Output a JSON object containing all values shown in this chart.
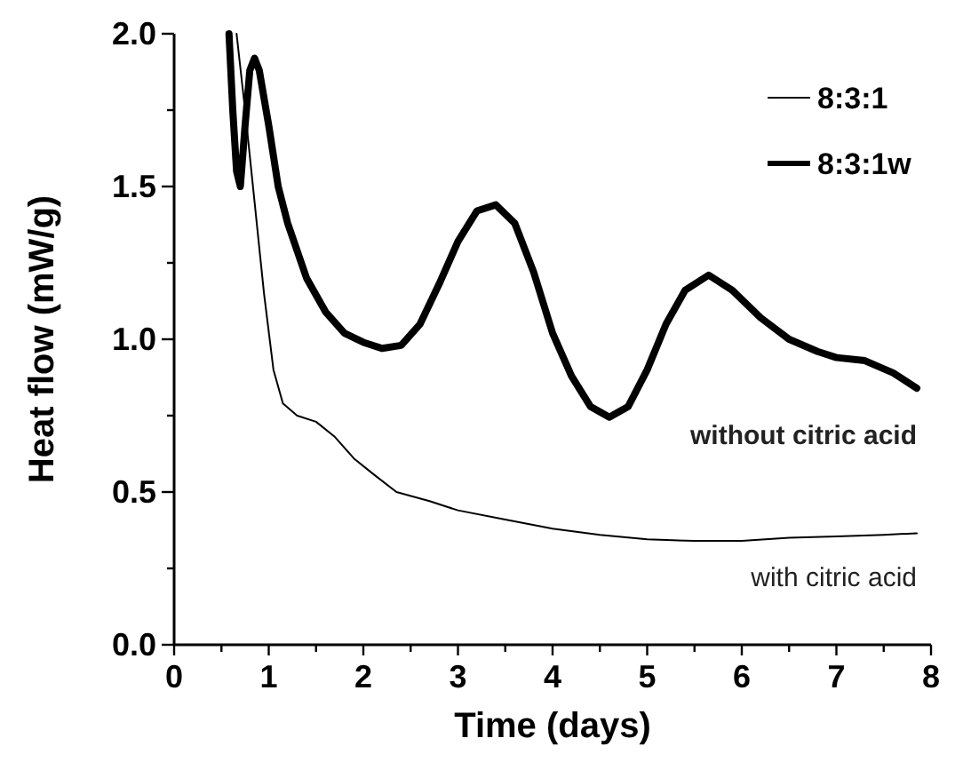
{
  "chart_data": {
    "type": "line",
    "xlabel": "Time (days)",
    "ylabel": "Heat flow (mW/g)",
    "xlim": [
      0,
      8
    ],
    "ylim": [
      0,
      2
    ],
    "xticks": [
      0,
      {
        "value": 0.5,
        "label": null
      },
      1,
      {
        "value": 1.5,
        "label": null
      },
      2,
      {
        "value": 2.5,
        "label": null
      },
      3,
      {
        "value": 3.5,
        "label": null
      },
      4,
      {
        "value": 4.5,
        "label": null
      },
      5,
      {
        "value": 5.5,
        "label": null
      },
      6,
      {
        "value": 6.5,
        "label": null
      },
      7,
      {
        "value": 7.5,
        "label": null
      },
      8
    ],
    "yticks": [
      {
        "value": 0,
        "label": "0.0"
      },
      {
        "value": 0.25,
        "label": null
      },
      {
        "value": 0.5,
        "label": "0.5"
      },
      {
        "value": 0.75,
        "label": null
      },
      {
        "value": 1,
        "label": "1.0"
      },
      {
        "value": 1.25,
        "label": null
      },
      {
        "value": 1.5,
        "label": "1.5"
      },
      {
        "value": 1.75,
        "label": null
      },
      {
        "value": 2,
        "label": "2.0"
      }
    ],
    "grid": false,
    "legend": "top right",
    "marker": "none",
    "line_style": "solid",
    "series": [
      {
        "name": "8:3:1",
        "color": "#000000",
        "x": [
          0.66,
          0.75,
          0.85,
          0.95,
          1.05,
          1.15,
          1.3,
          1.5,
          1.7,
          1.9,
          2.1,
          2.35,
          2.7,
          3.0,
          3.5,
          4.0,
          4.5,
          5.0,
          5.5,
          6.0,
          6.5,
          7.0,
          7.5,
          7.85
        ],
        "values": [
          2.0,
          1.75,
          1.45,
          1.15,
          0.9,
          0.79,
          0.75,
          0.73,
          0.68,
          0.61,
          0.56,
          0.5,
          0.47,
          0.44,
          0.41,
          0.38,
          0.36,
          0.345,
          0.34,
          0.34,
          0.35,
          0.355,
          0.36,
          0.365
        ]
      },
      {
        "name": "8:3:1w",
        "color": "#000000",
        "x": [
          0.58,
          0.62,
          0.66,
          0.7,
          0.75,
          0.8,
          0.85,
          0.9,
          1.0,
          1.1,
          1.2,
          1.4,
          1.6,
          1.8,
          2.0,
          2.2,
          2.4,
          2.6,
          2.8,
          3.0,
          3.2,
          3.4,
          3.6,
          3.8,
          4.0,
          4.2,
          4.4,
          4.6,
          4.8,
          5.0,
          5.2,
          5.4,
          5.65,
          5.9,
          6.2,
          6.5,
          6.8,
          7.0,
          7.3,
          7.6,
          7.85
        ],
        "values": [
          2.0,
          1.75,
          1.55,
          1.5,
          1.7,
          1.88,
          1.92,
          1.88,
          1.7,
          1.5,
          1.38,
          1.2,
          1.09,
          1.02,
          0.99,
          0.97,
          0.98,
          1.05,
          1.18,
          1.32,
          1.42,
          1.44,
          1.38,
          1.22,
          1.02,
          0.88,
          0.78,
          0.745,
          0.78,
          0.9,
          1.05,
          1.16,
          1.21,
          1.16,
          1.07,
          1.0,
          0.96,
          0.94,
          0.93,
          0.89,
          0.84
        ]
      }
    ],
    "annotations": [
      "without citric acid",
      "with citric acid"
    ]
  }
}
